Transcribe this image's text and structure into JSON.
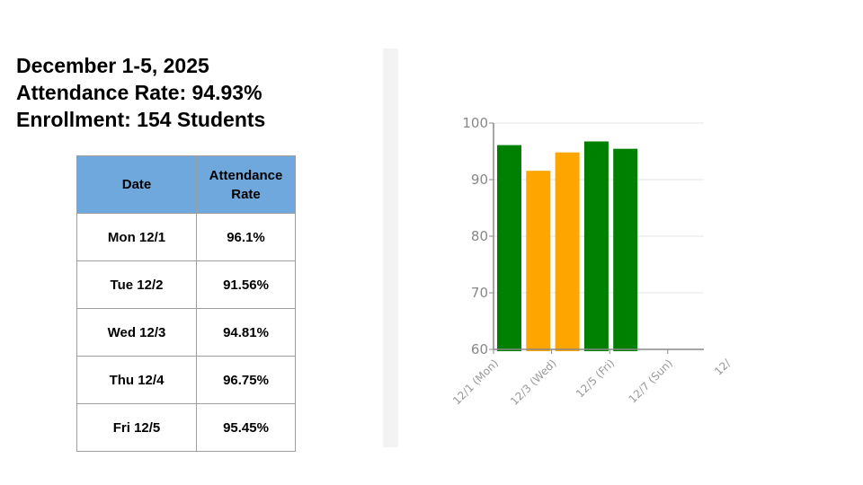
{
  "header": {
    "line1": "December 1-5, 2025",
    "line2": "Attendance Rate: 94.93%",
    "line3": "Enrollment: 154 Students"
  },
  "table": {
    "headers": [
      "Date",
      "Attendance Rate"
    ],
    "rows": [
      [
        "Mon 12/1",
        "96.1%"
      ],
      [
        "Tue 12/2",
        "91.56%"
      ],
      [
        "Wed 12/3",
        "94.81%"
      ],
      [
        "Thu 12/4",
        "96.75%"
      ],
      [
        "Fri 12/5",
        "95.45%"
      ]
    ]
  },
  "chart_data": {
    "type": "bar",
    "categories": [
      "12/1 (Mon)",
      "12/2 (Tue)",
      "12/3 (Wed)",
      "12/4 (Thu)",
      "12/5 (Fri)"
    ],
    "values": [
      96.1,
      91.56,
      94.81,
      96.75,
      95.45
    ],
    "colors": [
      "#008000",
      "#ffa500",
      "#ffa500",
      "#008000",
      "#008000"
    ],
    "yticks": [
      60,
      70,
      80,
      90,
      100
    ],
    "xtick_labels": [
      "12/1 (Mon)",
      "12/3 (Wed)",
      "12/5 (Fri)",
      "12/7 (Sun)",
      "12/"
    ],
    "ylim": [
      60,
      100
    ],
    "grid": true
  }
}
